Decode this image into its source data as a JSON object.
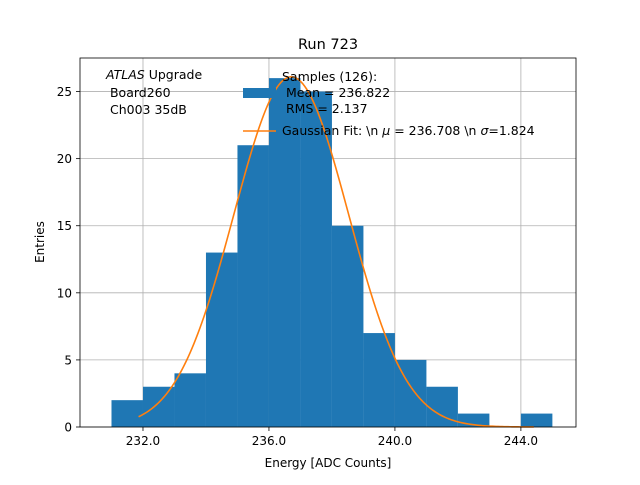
{
  "chart_data": {
    "type": "bar",
    "title": "Run 723",
    "xlabel": "Energy [ADC Counts]",
    "ylabel": "Entries",
    "xlim": [
      230.0,
      245.75
    ],
    "ylim": [
      0,
      27.5
    ],
    "grid": true,
    "x_ticks": [
      232,
      236,
      240,
      244
    ],
    "x_tick_labels": [
      "232.0",
      "236.0",
      "240.0",
      "244.0"
    ],
    "y_ticks": [
      0,
      5,
      10,
      15,
      20,
      25
    ],
    "y_tick_labels": [
      "0",
      "5",
      "10",
      "15",
      "20",
      "25"
    ],
    "bin_edges": [
      231,
      232,
      233,
      234,
      235,
      236,
      237,
      238,
      239,
      240,
      241,
      242,
      243,
      244,
      245
    ],
    "values": [
      2,
      3,
      4,
      13,
      21,
      26,
      25,
      15,
      7,
      5,
      3,
      1,
      0,
      1
    ],
    "fit": {
      "mu": 236.708,
      "sigma": 1.824,
      "amplitude": 26.1,
      "x_range": [
        231.86,
        244.41
      ]
    },
    "annotation": {
      "line1_italic": "ATLAS",
      "line1_rest": " Upgrade",
      "line2": " Board260",
      "line3": " Ch003 35dB"
    },
    "legend": {
      "placement": "top-right",
      "hist_label_line1": "Samples (126):",
      "hist_label_line2": " Mean = 236.822",
      "hist_label_line3": " RMS = 2.137",
      "fit_label_pre": "Gaussian Fit: \\n ",
      "fit_mu_symbol": "μ",
      "fit_label_mid": " = 236.708 \\n ",
      "fit_sigma_symbol": "σ",
      "fit_label_post": "=1.824"
    },
    "colors": {
      "hist": "#1f77b4",
      "fit": "#ff7f0e",
      "grid": "#b0b0b0",
      "axes": "#000000"
    }
  }
}
